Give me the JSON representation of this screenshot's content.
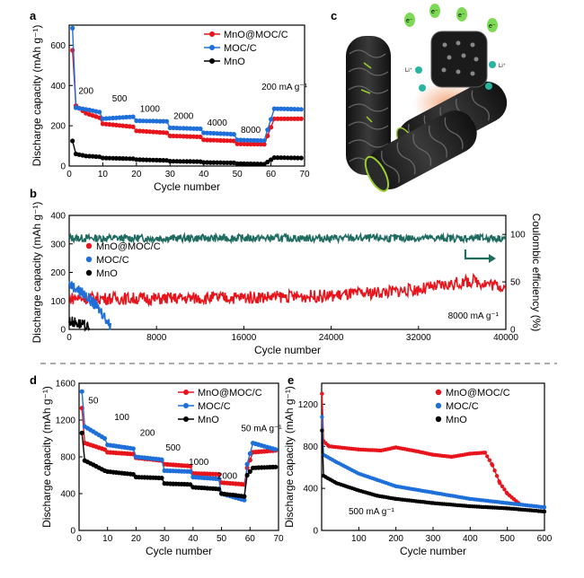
{
  "colors": {
    "red": "#e8141c",
    "blue": "#1e6fd9",
    "black": "#000000",
    "teal": "#1f6b60"
  },
  "panel_labels": {
    "a": "a",
    "b": "b",
    "c": "c",
    "d": "d",
    "e": "e"
  },
  "illustration": {
    "electron": "e⁻",
    "lithium": "Li⁺"
  },
  "chart_data": [
    {
      "id": "a",
      "type": "line",
      "xlabel": "Cycle number",
      "ylabel": "Discharge capacity (mAh g⁻¹)",
      "xlim": [
        0,
        70
      ],
      "ylim": [
        0,
        700
      ],
      "xticks": [
        0,
        10,
        20,
        30,
        40,
        50,
        60,
        70
      ],
      "yticks": [
        0,
        200,
        400,
        600
      ],
      "legend": [
        "MnO@MOC/C",
        "MOC/C",
        "MnO"
      ],
      "rate_labels": [
        "200",
        "500",
        "1000",
        "2000",
        "4000",
        "8000",
        "200 mA g⁻¹"
      ],
      "series": [
        {
          "name": "MnO@MOC/C",
          "color": "red",
          "points": [
            [
              1,
              575
            ],
            [
              2,
              300
            ],
            [
              5,
              262
            ],
            [
              9,
              240
            ],
            [
              10,
              210
            ],
            [
              19,
              195
            ],
            [
              20,
              175
            ],
            [
              29,
              165
            ],
            [
              30,
              150
            ],
            [
              39,
              145
            ],
            [
              40,
              130
            ],
            [
              49,
              125
            ],
            [
              50,
              110
            ],
            [
              58,
              108
            ],
            [
              59,
              150
            ],
            [
              61,
              235
            ],
            [
              69,
              235
            ]
          ]
        },
        {
          "name": "MOC/C",
          "color": "blue",
          "points": [
            [
              1,
              685
            ],
            [
              2,
              290
            ],
            [
              5,
              282
            ],
            [
              9,
              268
            ],
            [
              10,
              235
            ],
            [
              19,
              245
            ],
            [
              20,
              225
            ],
            [
              29,
              222
            ],
            [
              30,
              190
            ],
            [
              39,
              185
            ],
            [
              40,
              165
            ],
            [
              49,
              158
            ],
            [
              50,
              130
            ],
            [
              58,
              126
            ],
            [
              59,
              180
            ],
            [
              61,
              285
            ],
            [
              69,
              282
            ]
          ]
        },
        {
          "name": "MnO",
          "color": "black",
          "points": [
            [
              1,
              125
            ],
            [
              2,
              60
            ],
            [
              5,
              50
            ],
            [
              9,
              46
            ],
            [
              10,
              40
            ],
            [
              19,
              36
            ],
            [
              20,
              32
            ],
            [
              29,
              28
            ],
            [
              30,
              24
            ],
            [
              39,
              22
            ],
            [
              40,
              18
            ],
            [
              49,
              16
            ],
            [
              50,
              12
            ],
            [
              58,
              10
            ],
            [
              59,
              20
            ],
            [
              61,
              42
            ],
            [
              69,
              40
            ]
          ]
        }
      ]
    },
    {
      "id": "b",
      "type": "line",
      "xlabel": "Cycle number",
      "ylabel": "Discharge capacity (mAh g⁻¹)",
      "y2label": "Coulombic efficiency (%)",
      "xlim": [
        0,
        40000
      ],
      "ylim": [
        0,
        400
      ],
      "y2lim": [
        0,
        120
      ],
      "xticks": [
        0,
        8000,
        16000,
        24000,
        32000,
        40000
      ],
      "yticks": [
        0,
        100,
        200,
        300,
        400
      ],
      "y2ticks": [
        0,
        50,
        100
      ],
      "legend": [
        "MnO@MOC/C",
        "MOC/C",
        "MnO"
      ],
      "annotation": "8000 mA g⁻¹",
      "series": [
        {
          "name": "Coulombic efficiency",
          "color": "teal",
          "axis": "y2",
          "points": [
            [
              0,
              96
            ],
            [
              40000,
              96
            ]
          ]
        },
        {
          "name": "MnO@MOC/C",
          "color": "red",
          "points": [
            [
              0,
              110
            ],
            [
              8000,
              108
            ],
            [
              16000,
              112
            ],
            [
              24000,
              118
            ],
            [
              32000,
              140
            ],
            [
              37000,
              170
            ],
            [
              40000,
              150
            ]
          ]
        },
        {
          "name": "MOC/C",
          "color": "blue",
          "points": [
            [
              0,
              160
            ],
            [
              1500,
              120
            ],
            [
              3000,
              60
            ],
            [
              3800,
              10
            ]
          ]
        },
        {
          "name": "MnO",
          "color": "black",
          "points": [
            [
              0,
              30
            ],
            [
              1000,
              20
            ],
            [
              1900,
              0
            ]
          ]
        }
      ]
    },
    {
      "id": "d",
      "type": "line",
      "xlabel": "Cycle number",
      "ylabel": "Discharge capacity (mAh g⁻¹)",
      "xlim": [
        0,
        70
      ],
      "ylim": [
        0,
        1600
      ],
      "xticks": [
        0,
        10,
        20,
        30,
        40,
        50,
        60,
        70
      ],
      "yticks": [
        0,
        400,
        800,
        1200,
        1600
      ],
      "legend": [
        "MnO@MOC/C",
        "MOC/C",
        "MnO"
      ],
      "rate_labels": [
        "50",
        "100",
        "200",
        "500",
        "1000",
        "2000",
        "50 mA g⁻¹"
      ],
      "series": [
        {
          "name": "MnO@MOC/C",
          "color": "red",
          "points": [
            [
              1,
              1330
            ],
            [
              2,
              950
            ],
            [
              9,
              880
            ],
            [
              10,
              850
            ],
            [
              19,
              830
            ],
            [
              20,
              790
            ],
            [
              29,
              760
            ],
            [
              30,
              720
            ],
            [
              39,
              700
            ],
            [
              40,
              620
            ],
            [
              49,
              610
            ],
            [
              50,
              520
            ],
            [
              58,
              500
            ],
            [
              59,
              680
            ],
            [
              61,
              850
            ],
            [
              69,
              870
            ]
          ]
        },
        {
          "name": "MOC/C",
          "color": "blue",
          "points": [
            [
              1,
              1510
            ],
            [
              2,
              1130
            ],
            [
              9,
              1000
            ],
            [
              10,
              930
            ],
            [
              19,
              890
            ],
            [
              20,
              800
            ],
            [
              29,
              770
            ],
            [
              30,
              650
            ],
            [
              39,
              640
            ],
            [
              40,
              580
            ],
            [
              49,
              560
            ],
            [
              50,
              400
            ],
            [
              58,
              330
            ],
            [
              59,
              720
            ],
            [
              61,
              950
            ],
            [
              69,
              880
            ]
          ]
        },
        {
          "name": "MnO",
          "color": "black",
          "points": [
            [
              1,
              1060
            ],
            [
              2,
              760
            ],
            [
              9,
              650
            ],
            [
              10,
              640
            ],
            [
              19,
              610
            ],
            [
              20,
              580
            ],
            [
              29,
              570
            ],
            [
              30,
              510
            ],
            [
              39,
              500
            ],
            [
              40,
              470
            ],
            [
              49,
              450
            ],
            [
              50,
              400
            ],
            [
              58,
              370
            ],
            [
              59,
              600
            ],
            [
              61,
              680
            ],
            [
              69,
              690
            ]
          ]
        }
      ]
    },
    {
      "id": "e",
      "type": "line",
      "xlabel": "Cycle number",
      "ylabel": "Discharge capacity (mAh g⁻¹)",
      "xlim": [
        0,
        600
      ],
      "ylim": [
        0,
        1400
      ],
      "xticks": [
        100,
        200,
        300,
        400,
        500,
        600
      ],
      "yticks": [
        0,
        400,
        800,
        1200
      ],
      "legend": [
        "MnO@MOC/C",
        "MOC/C",
        "MnO"
      ],
      "annotation": "500 mA g⁻¹",
      "series": [
        {
          "name": "MnO@MOC/C",
          "color": "red",
          "points": [
            [
              1,
              1300
            ],
            [
              5,
              850
            ],
            [
              20,
              800
            ],
            [
              100,
              770
            ],
            [
              160,
              760
            ],
            [
              200,
              790
            ],
            [
              260,
              750
            ],
            [
              300,
              720
            ],
            [
              350,
              700
            ],
            [
              400,
              730
            ],
            [
              440,
              740
            ],
            [
              460,
              620
            ],
            [
              480,
              450
            ],
            [
              500,
              350
            ],
            [
              530,
              260
            ]
          ]
        },
        {
          "name": "MOC/C",
          "color": "blue",
          "points": [
            [
              1,
              1080
            ],
            [
              5,
              720
            ],
            [
              40,
              650
            ],
            [
              100,
              540
            ],
            [
              150,
              480
            ],
            [
              200,
              420
            ],
            [
              300,
              360
            ],
            [
              400,
              300
            ],
            [
              500,
              260
            ],
            [
              600,
              220
            ]
          ]
        },
        {
          "name": "MnO",
          "color": "black",
          "points": [
            [
              1,
              950
            ],
            [
              5,
              520
            ],
            [
              40,
              450
            ],
            [
              100,
              380
            ],
            [
              150,
              330
            ],
            [
              200,
              300
            ],
            [
              300,
              260
            ],
            [
              400,
              230
            ],
            [
              500,
              210
            ],
            [
              600,
              180
            ]
          ]
        }
      ]
    }
  ]
}
